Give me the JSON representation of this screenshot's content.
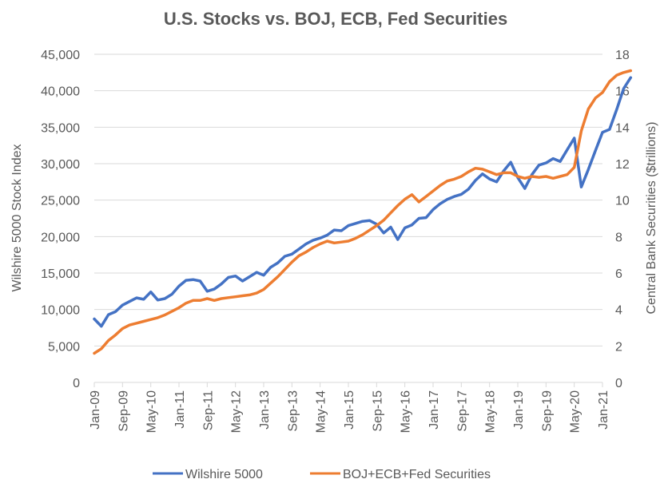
{
  "chart_data": {
    "type": "line",
    "title": "U.S. Stocks vs. BOJ, ECB, Fed Securities",
    "xlabel": "",
    "ylabel": "Wilshire 5000 Stock Index",
    "y2label": "Central Bank Securities ($trillions)",
    "ylim": [
      0,
      45000
    ],
    "y2lim": [
      0,
      18
    ],
    "yticks": [
      "0",
      "5,000",
      "10,000",
      "15,000",
      "20,000",
      "25,000",
      "30,000",
      "35,000",
      "40,000",
      "45,000"
    ],
    "y2ticks": [
      "0",
      "2",
      "4",
      "6",
      "8",
      "10",
      "12",
      "14",
      "16",
      "18"
    ],
    "xticks": [
      "Jan-09",
      "Sep-09",
      "May-10",
      "Jan-11",
      "Sep-11",
      "May-12",
      "Jan-13",
      "Sep-13",
      "May-14",
      "Jan-15",
      "Sep-15",
      "May-16",
      "Jan-17",
      "Sep-17",
      "May-18",
      "Jan-19",
      "Sep-19",
      "May-20",
      "Jan-21"
    ],
    "x_months_from_jan09_step": 2,
    "grid": true,
    "legend": "bottom",
    "series": [
      {
        "name": "Wilshire 5000",
        "axis": "left",
        "color": "#4472C4",
        "values": [
          8700,
          7700,
          9300,
          9700,
          10600,
          11100,
          11600,
          11400,
          12400,
          11300,
          11500,
          12100,
          13200,
          14000,
          14100,
          13900,
          12500,
          12800,
          13500,
          14400,
          14600,
          13900,
          14500,
          15100,
          14700,
          15800,
          16400,
          17300,
          17600,
          18300,
          19000,
          19500,
          19800,
          20200,
          20900,
          20800,
          21500,
          21800,
          22100,
          22200,
          21700,
          20500,
          21300,
          19600,
          21200,
          21600,
          22500,
          22600,
          23700,
          24500,
          25100,
          25500,
          25800,
          26500,
          27700,
          28600,
          27900,
          27500,
          29000,
          30200,
          28100,
          26600,
          28500,
          29800,
          30100,
          30700,
          30300,
          31900,
          33500,
          26800,
          29200,
          31800,
          34300,
          34700,
          37400,
          40300,
          41800
        ]
      },
      {
        "name": "BOJ+ECB+Fed Securities",
        "axis": "right",
        "color": "#ED7D31",
        "values": [
          1.6,
          1.85,
          2.3,
          2.6,
          2.95,
          3.15,
          3.25,
          3.35,
          3.45,
          3.55,
          3.7,
          3.9,
          4.1,
          4.35,
          4.5,
          4.5,
          4.6,
          4.5,
          4.6,
          4.65,
          4.7,
          4.75,
          4.8,
          4.9,
          5.1,
          5.45,
          5.8,
          6.2,
          6.6,
          6.95,
          7.15,
          7.4,
          7.6,
          7.75,
          7.65,
          7.7,
          7.75,
          7.9,
          8.1,
          8.35,
          8.6,
          8.9,
          9.3,
          9.7,
          10.05,
          10.3,
          9.9,
          10.2,
          10.5,
          10.8,
          11.05,
          11.15,
          11.3,
          11.55,
          11.75,
          11.7,
          11.55,
          11.4,
          11.5,
          11.5,
          11.3,
          11.2,
          11.3,
          11.25,
          11.3,
          11.2,
          11.3,
          11.4,
          11.8,
          13.8,
          15.0,
          15.6,
          15.9,
          16.5,
          16.85,
          17.0,
          17.1
        ]
      }
    ]
  }
}
